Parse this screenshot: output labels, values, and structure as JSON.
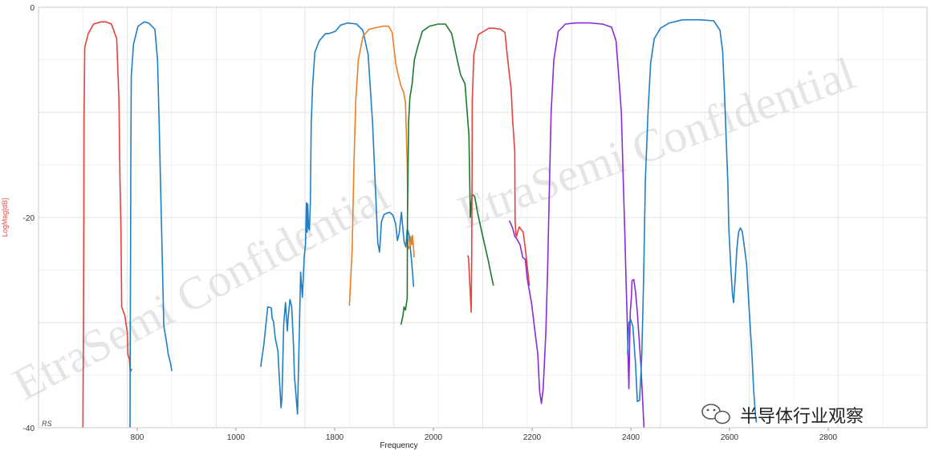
{
  "chart_data": {
    "type": "line",
    "xlabel": "Frequency",
    "ylabel": "LogMag[dB]",
    "x_tick_labels": [
      "800",
      "1000",
      "1800",
      "2000",
      "2200",
      "2400",
      "2600",
      "2800"
    ],
    "y_ticks": [
      0,
      -20,
      -40
    ],
    "ylim": [
      -40,
      0
    ],
    "grid": true,
    "corner_label": "RS",
    "series": [
      {
        "color": "#e8413a",
        "segments": [
          [
            [
              850,
              -40
            ],
            [
              850.6,
              -30
            ],
            [
              851,
              -20
            ],
            [
              851.2,
              -11
            ],
            [
              852,
              -3.8
            ],
            [
              856,
              -2.5
            ],
            [
              862,
              -1.6
            ],
            [
              870,
              -1.4
            ],
            [
              876,
              -1.4
            ],
            [
              882,
              -1.6
            ],
            [
              888,
              -3
            ],
            [
              890.6,
              -9
            ],
            [
              891.6,
              -16
            ],
            [
              892.8,
              -21
            ],
            [
              893.6,
              -28.5
            ],
            [
              897,
              -29.3
            ],
            [
              900,
              -31
            ],
            [
              900.6,
              -33
            ],
            [
              902.3,
              -33.5
            ],
            [
              903.2,
              -34.7
            ],
            [
              905,
              -34.4
            ]
          ]
        ]
      },
      {
        "color": "#1e7fc6",
        "segments": [
          [
            [
              903,
              -40
            ],
            [
              903.2,
              -33
            ],
            [
              903.6,
              -23
            ],
            [
              904,
              -13
            ],
            [
              904.4,
              -6.5
            ],
            [
              907,
              -3.5
            ],
            [
              912,
              -1.8
            ],
            [
              919,
              -1.4
            ],
            [
              924,
              -1.5
            ],
            [
              931,
              -2.1
            ],
            [
              934,
              -5
            ],
            [
              935.8,
              -11
            ],
            [
              937.4,
              -17
            ],
            [
              939.3,
              -24
            ],
            [
              941,
              -30.3
            ],
            [
              944,
              -31.8
            ],
            [
              946,
              -33
            ],
            [
              949,
              -34
            ],
            [
              950,
              -34.6
            ]
          ]
        ]
      },
      {
        "color": "#1e7fc6",
        "segments": [
          [
            [
              1050,
              -34.2
            ],
            [
              1053.5,
              -32.2
            ],
            [
              1058,
              -28.5
            ],
            [
              1062,
              -28.6
            ],
            [
              1063,
              -29.6
            ],
            [
              1064.5,
              -29.9
            ],
            [
              1066.5,
              -31.5
            ],
            [
              1069.5,
              -32.7
            ],
            [
              1071,
              -35.2
            ],
            [
              1073,
              -38.1
            ],
            [
              1074,
              -37.2
            ],
            [
              1076,
              -30.2
            ],
            [
              1078,
              -28.1
            ],
            [
              1080,
              -30.8
            ],
            [
              1081,
              -29.5
            ],
            [
              1083,
              -27.8
            ],
            [
              1085,
              -28.5
            ],
            [
              1087,
              -32.2
            ],
            [
              1088,
              -35
            ],
            [
              1091.5,
              -38.7
            ],
            [
              1093,
              -32.8
            ],
            [
              1095,
              -25.2
            ],
            [
              1097,
              -27.6
            ],
            [
              1099,
              -23.8
            ],
            [
              1100.5,
              -22.5
            ],
            [
              1101.5,
              -18.6
            ],
            [
              1102.3,
              -21.4
            ],
            [
              1103,
              -18.7
            ],
            [
              1104,
              -21
            ],
            [
              1105,
              -21.2
            ],
            [
              1106,
              -18.5
            ],
            [
              1107,
              -11
            ],
            [
              1108.5,
              -7.5
            ],
            [
              1111,
              -4.3
            ],
            [
              1116,
              -3.2
            ],
            [
              1123,
              -2.5
            ],
            [
              1127,
              -2.5
            ],
            [
              1134,
              -2.3
            ],
            [
              1140,
              -1.7
            ],
            [
              1148,
              -1.5
            ],
            [
              1158,
              -1.6
            ],
            [
              1165,
              -2.2
            ],
            [
              1171,
              -4.5
            ],
            [
              1176,
              -11
            ],
            [
              1180,
              -18.8
            ],
            [
              1181.8,
              -22.4
            ],
            [
              1183.8,
              -23.3
            ],
            [
              1186,
              -20.4
            ],
            [
              1189,
              -19.7
            ],
            [
              1195,
              -19.5
            ],
            [
              1199,
              -19.8
            ],
            [
              1202,
              -20.6
            ],
            [
              1204,
              -22.2
            ],
            [
              1206,
              -21.5
            ],
            [
              1208.5,
              -19.5
            ],
            [
              1210,
              -21
            ],
            [
              1211.5,
              -22.3
            ],
            [
              1213.5,
              -22.8
            ],
            [
              1215,
              -21.1
            ],
            [
              1217,
              -21.6
            ],
            [
              1220,
              -24.2
            ],
            [
              1222.2,
              -26.6
            ]
          ]
        ]
      },
      {
        "color": "#ef7d22",
        "segments": [
          [
            [
              1150,
              -28.4
            ],
            [
              1153,
              -23
            ],
            [
              1155,
              -15
            ],
            [
              1157,
              -9
            ],
            [
              1160,
              -5
            ],
            [
              1165,
              -2.8
            ],
            [
              1172,
              -2.1
            ],
            [
              1182,
              -1.9
            ],
            [
              1188,
              -1.8
            ],
            [
              1194,
              -1.8
            ],
            [
              1198,
              -2.4
            ],
            [
              1202,
              -5.3
            ],
            [
              1205,
              -6.5
            ],
            [
              1208,
              -7.5
            ],
            [
              1211,
              -8.1
            ],
            [
              1213,
              -9.1
            ],
            [
              1214,
              -12
            ],
            [
              1215,
              -15
            ],
            [
              1215.5,
              -19
            ]
          ],
          [
            [
              1215.5,
              -22
            ],
            [
              1216,
              -23
            ],
            [
              1218,
              -22.7
            ],
            [
              1219,
              -21.8
            ],
            [
              1220,
              -22.6
            ],
            [
              1221,
              -21.7
            ],
            [
              1222,
              -22.8
            ],
            [
              1222.8,
              -23.8
            ]
          ]
        ]
      },
      {
        "color": "#1b7a2e",
        "segments": [
          [
            [
              1208,
              -30.2
            ],
            [
              1210,
              -29.4
            ],
            [
              1211.5,
              -28.5
            ],
            [
              1213,
              -28.8
            ],
            [
              1215,
              -27.7
            ],
            [
              1215.3,
              -20
            ],
            [
              1215.8,
              -16.1
            ],
            [
              1216.5,
              -11
            ],
            [
              1218,
              -8.6
            ],
            [
              1220.5,
              -7.3
            ],
            [
              1223,
              -5
            ],
            [
              1227,
              -3.7
            ],
            [
              1232,
              -2.3
            ],
            [
              1240,
              -1.8
            ],
            [
              1250,
              -1.6
            ],
            [
              1258,
              -1.6
            ],
            [
              1265,
              -2.5
            ],
            [
              1270,
              -4.5
            ],
            [
              1275,
              -6.4
            ],
            [
              1280,
              -7.3
            ],
            [
              1284.5,
              -12.2
            ],
            [
              1286,
              -20
            ],
            [
              1288,
              -17.8
            ],
            [
              1291,
              -18
            ],
            [
              1294,
              -19.5
            ],
            [
              1300,
              -21.8
            ],
            [
              1306,
              -24
            ],
            [
              1312,
              -26.5
            ]
          ]
        ]
      },
      {
        "color": "#e8413a",
        "segments": [
          [
            [
              1283,
              -23.6
            ],
            [
              1284,
              -23.9
            ],
            [
              1287,
              -29
            ],
            [
              1287.5,
              -24
            ],
            [
              1288,
              -16
            ],
            [
              1288.2,
              -9
            ],
            [
              1290,
              -4.5
            ],
            [
              1295,
              -2.6
            ],
            [
              1301,
              -2.3
            ],
            [
              1307,
              -2
            ],
            [
              1313,
              -2
            ],
            [
              1320,
              -2.1
            ],
            [
              1325,
              -2.4
            ],
            [
              1327.5,
              -4.5
            ],
            [
              1330,
              -6.4
            ],
            [
              1332,
              -7.8
            ],
            [
              1333.6,
              -10.7
            ],
            [
              1336,
              -13.7
            ],
            [
              1336.4,
              -20.3
            ],
            [
              1337.3,
              -21.6
            ],
            [
              1337.9,
              -21.8
            ],
            [
              1341,
              -20.9
            ],
            [
              1343.7,
              -21.2
            ],
            [
              1345.5,
              -21.4
            ],
            [
              1348,
              -23
            ],
            [
              1350,
              -24.6
            ],
            [
              1352.5,
              -26.5
            ]
          ]
        ]
      },
      {
        "color": "#8a2bd6",
        "segments": [
          [
            [
              1330,
              -20.3
            ],
            [
              1333.6,
              -21
            ],
            [
              1336,
              -21.8
            ],
            [
              1338,
              -22
            ],
            [
              1342,
              -22.6
            ],
            [
              1345,
              -23.8
            ],
            [
              1348,
              -24
            ],
            [
              1350,
              -25.8
            ],
            [
              1355,
              -28.2
            ],
            [
              1359,
              -31
            ],
            [
              1362,
              -33
            ],
            [
              1364,
              -36.5
            ],
            [
              1366,
              -37.7
            ],
            [
              1368,
              -36.3
            ],
            [
              1371,
              -31
            ],
            [
              1373,
              -25
            ],
            [
              1375,
              -17.3
            ],
            [
              1377,
              -10
            ],
            [
              1380,
              -5
            ],
            [
              1385,
              -2.3
            ],
            [
              1393,
              -1.6
            ],
            [
              1405,
              -1.5
            ],
            [
              1420,
              -1.5
            ],
            [
              1435,
              -1.6
            ],
            [
              1445,
              -1.9
            ],
            [
              1450,
              -3.2
            ],
            [
              1453,
              -6.5
            ],
            [
              1456,
              -10
            ],
            [
              1458,
              -16
            ],
            [
              1460,
              -21.7
            ],
            [
              1461.5,
              -26.7
            ],
            [
              1462.5,
              -29.5
            ],
            [
              1463.5,
              -33
            ],
            [
              1464.5,
              -36.3
            ],
            [
              1465.3,
              -32
            ],
            [
              1466,
              -29
            ],
            [
              1467.3,
              -27.6
            ],
            [
              1468,
              -26
            ],
            [
              1470,
              -25.9
            ],
            [
              1472,
              -27.1
            ],
            [
              1474,
              -29
            ],
            [
              1476,
              -31.5
            ],
            [
              1478,
              -34
            ],
            [
              1480,
              -37.5
            ],
            [
              1481.5,
              -40
            ]
          ]
        ]
      },
      {
        "color": "#1e7fc6",
        "segments": [
          [
            [
              1463,
              -33
            ],
            [
              1464.5,
              -30
            ],
            [
              1466.5,
              -29.7
            ],
            [
              1469,
              -30.4
            ],
            [
              1472,
              -34
            ],
            [
              1474,
              -37.5
            ],
            [
              1476.5,
              -37.4
            ],
            [
              1478,
              -35
            ],
            [
              1479,
              -33
            ],
            [
              1481,
              -26
            ],
            [
              1483,
              -16.5
            ],
            [
              1486,
              -10
            ],
            [
              1489,
              -5.3
            ],
            [
              1493,
              -3
            ],
            [
              1500,
              -2
            ],
            [
              1510,
              -1.5
            ],
            [
              1525,
              -1.2
            ],
            [
              1545,
              -1.2
            ],
            [
              1560,
              -1.3
            ],
            [
              1567,
              -2.2
            ],
            [
              1570,
              -4.2
            ],
            [
              1572,
              -8
            ],
            [
              1574,
              -12.5
            ],
            [
              1576,
              -17
            ],
            [
              1577,
              -21
            ],
            [
              1579,
              -24.5
            ],
            [
              1581,
              -27.3
            ],
            [
              1582.3,
              -28.1
            ],
            [
              1584,
              -26
            ],
            [
              1586,
              -23
            ],
            [
              1588,
              -21.4
            ],
            [
              1590,
              -21
            ],
            [
              1592,
              -21.3
            ],
            [
              1594,
              -22.5
            ],
            [
              1597,
              -24.5
            ],
            [
              1599,
              -27.5
            ],
            [
              1601,
              -30.3
            ],
            [
              1603,
              -33
            ],
            [
              1605,
              -36.5
            ],
            [
              1607,
              -38.8
            ],
            [
              1608,
              -39.5
            ]
          ]
        ]
      }
    ]
  },
  "watermark": {
    "text1": "EtraSemi Confidential",
    "text2": "EtraSemi Confidential"
  },
  "badge": {
    "text": "半导体行业观察",
    "icon": "wechat-icon"
  }
}
